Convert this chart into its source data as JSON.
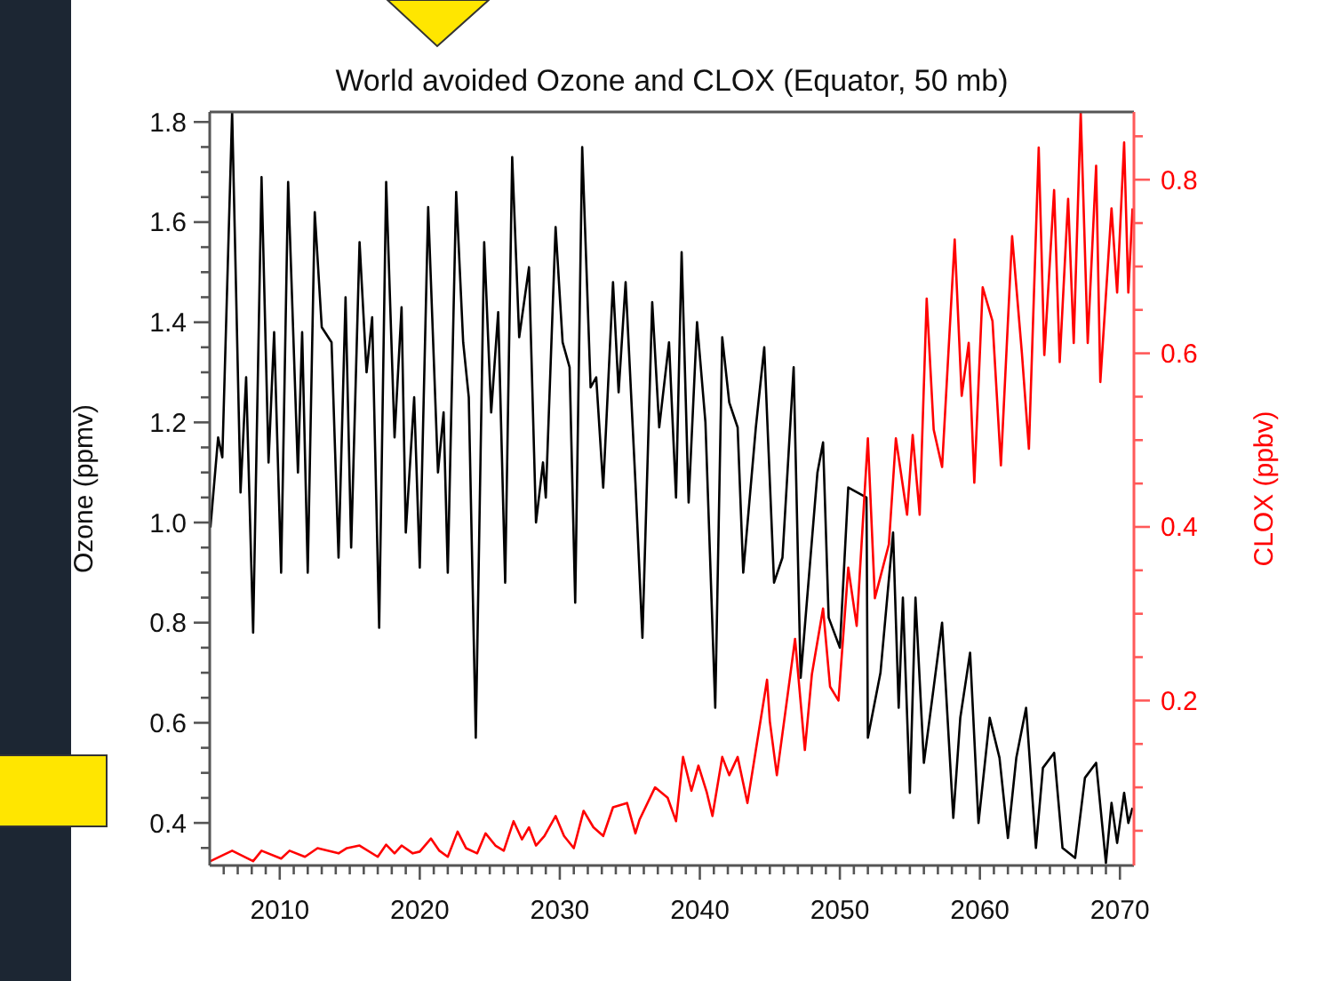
{
  "chart_data": {
    "type": "line",
    "title": "World avoided Ozone and CLOX (Equator, 50 mb)",
    "ylabel": "Ozone (ppmv)",
    "y2label": "CLOX (ppbv)",
    "xlim": [
      2005,
      2071
    ],
    "ylim": [
      0.315,
      1.82
    ],
    "y2lim": [
      0.01,
      0.878
    ],
    "xticks": [
      {
        "value": 2006,
        "label": null
      },
      {
        "value": 2007,
        "label": null
      },
      {
        "value": 2008,
        "label": null
      },
      {
        "value": 2009,
        "label": null
      },
      2010,
      {
        "value": 2011,
        "label": null
      },
      {
        "value": 2012,
        "label": null
      },
      {
        "value": 2013,
        "label": null
      },
      {
        "value": 2014,
        "label": null
      },
      {
        "value": 2015,
        "label": null
      },
      {
        "value": 2016,
        "label": null
      },
      {
        "value": 2017,
        "label": null
      },
      {
        "value": 2018,
        "label": null
      },
      {
        "value": 2019,
        "label": null
      },
      2020,
      {
        "value": 2021,
        "label": null
      },
      {
        "value": 2022,
        "label": null
      },
      {
        "value": 2023,
        "label": null
      },
      {
        "value": 2024,
        "label": null
      },
      {
        "value": 2025,
        "label": null
      },
      {
        "value": 2026,
        "label": null
      },
      {
        "value": 2027,
        "label": null
      },
      {
        "value": 2028,
        "label": null
      },
      {
        "value": 2029,
        "label": null
      },
      2030,
      {
        "value": 2031,
        "label": null
      },
      {
        "value": 2032,
        "label": null
      },
      {
        "value": 2033,
        "label": null
      },
      {
        "value": 2034,
        "label": null
      },
      {
        "value": 2035,
        "label": null
      },
      {
        "value": 2036,
        "label": null
      },
      {
        "value": 2037,
        "label": null
      },
      {
        "value": 2038,
        "label": null
      },
      {
        "value": 2039,
        "label": null
      },
      2040,
      {
        "value": 2041,
        "label": null
      },
      {
        "value": 2042,
        "label": null
      },
      {
        "value": 2043,
        "label": null
      },
      {
        "value": 2044,
        "label": null
      },
      {
        "value": 2045,
        "label": null
      },
      {
        "value": 2046,
        "label": null
      },
      {
        "value": 2047,
        "label": null
      },
      {
        "value": 2048,
        "label": null
      },
      {
        "value": 2049,
        "label": null
      },
      2050,
      {
        "value": 2051,
        "label": null
      },
      {
        "value": 2052,
        "label": null
      },
      {
        "value": 2053,
        "label": null
      },
      {
        "value": 2054,
        "label": null
      },
      {
        "value": 2055,
        "label": null
      },
      {
        "value": 2056,
        "label": null
      },
      {
        "value": 2057,
        "label": null
      },
      {
        "value": 2058,
        "label": null
      },
      {
        "value": 2059,
        "label": null
      },
      2060,
      {
        "value": 2061,
        "label": null
      },
      {
        "value": 2062,
        "label": null
      },
      {
        "value": 2063,
        "label": null
      },
      {
        "value": 2064,
        "label": null
      },
      {
        "value": 2065,
        "label": null
      },
      {
        "value": 2066,
        "label": null
      },
      {
        "value": 2067,
        "label": null
      },
      {
        "value": 2068,
        "label": null
      },
      {
        "value": 2069,
        "label": null
      },
      2070
    ],
    "yticks": [
      {
        "value": 0.35,
        "label": null
      },
      {
        "value": 0.4,
        "label": "0.4"
      },
      {
        "value": 0.45,
        "label": null
      },
      {
        "value": 0.5,
        "label": null
      },
      {
        "value": 0.55,
        "label": null
      },
      {
        "value": 0.6,
        "label": "0.6"
      },
      {
        "value": 0.65,
        "label": null
      },
      {
        "value": 0.7,
        "label": null
      },
      {
        "value": 0.75,
        "label": null
      },
      {
        "value": 0.8,
        "label": "0.8"
      },
      {
        "value": 0.85,
        "label": null
      },
      {
        "value": 0.9,
        "label": null
      },
      {
        "value": 0.95,
        "label": null
      },
      {
        "value": 1.0,
        "label": "1.0"
      },
      {
        "value": 1.05,
        "label": null
      },
      {
        "value": 1.1,
        "label": null
      },
      {
        "value": 1.15,
        "label": null
      },
      {
        "value": 1.2,
        "label": "1.2"
      },
      {
        "value": 1.25,
        "label": null
      },
      {
        "value": 1.3,
        "label": null
      },
      {
        "value": 1.35,
        "label": null
      },
      {
        "value": 1.4,
        "label": "1.4"
      },
      {
        "value": 1.45,
        "label": null
      },
      {
        "value": 1.5,
        "label": null
      },
      {
        "value": 1.55,
        "label": null
      },
      {
        "value": 1.6,
        "label": "1.6"
      },
      {
        "value": 1.65,
        "label": null
      },
      {
        "value": 1.7,
        "label": null
      },
      {
        "value": 1.75,
        "label": null
      },
      {
        "value": 1.8,
        "label": "1.8"
      }
    ],
    "y2ticks": [
      {
        "value": 0.05,
        "label": null
      },
      {
        "value": 0.1,
        "label": null
      },
      {
        "value": 0.15,
        "label": null
      },
      {
        "value": 0.2,
        "label": "0.2"
      },
      {
        "value": 0.25,
        "label": null
      },
      {
        "value": 0.3,
        "label": null
      },
      {
        "value": 0.35,
        "label": null
      },
      {
        "value": 0.4,
        "label": "0.4"
      },
      {
        "value": 0.45,
        "label": null
      },
      {
        "value": 0.5,
        "label": null
      },
      {
        "value": 0.55,
        "label": null
      },
      {
        "value": 0.6,
        "label": "0.6"
      },
      {
        "value": 0.65,
        "label": null
      },
      {
        "value": 0.7,
        "label": null
      },
      {
        "value": 0.75,
        "label": null
      },
      {
        "value": 0.8,
        "label": "0.8"
      },
      {
        "value": 0.85,
        "label": null
      }
    ],
    "series": [
      {
        "color": "#000000",
        "x": [
          2005.05,
          2005.6,
          2005.9,
          2006.6,
          2007.2,
          2007.6,
          2008.1,
          2008.7,
          2009.2,
          2009.6,
          2010.1,
          2010.6,
          2011.3,
          2011.6,
          2012.0,
          2012.5,
          2013.0,
          2013.7,
          2014.2,
          2014.7,
          2015.1,
          2015.7,
          2016.2,
          2016.6,
          2017.1,
          2017.6,
          2018.2,
          2018.7,
          2019.0,
          2019.6,
          2020.0,
          2020.6,
          2021.3,
          2021.7,
          2022.0,
          2022.6,
          2023.1,
          2023.5,
          2024.0,
          2024.6,
          2025.1,
          2025.6,
          2026.1,
          2026.6,
          2027.1,
          2027.8,
          2028.3,
          2028.8,
          2029.0,
          2029.7,
          2030.2,
          2030.7,
          2031.1,
          2031.6,
          2032.2,
          2032.6,
          2033.1,
          2033.8,
          2034.2,
          2034.7,
          2035.4,
          2035.9,
          2036.6,
          2037.1,
          2037.8,
          2038.3,
          2038.7,
          2039.2,
          2039.8,
          2040.4,
          2041.1,
          2041.6,
          2042.1,
          2042.7,
          2043.1,
          2044.0,
          2044.6,
          2045.3,
          2045.9,
          2046.7,
          2047.2,
          2048.4,
          2048.8,
          2049.2,
          2050.0,
          2050.6,
          2051.9,
          2052.0,
          2052.9,
          2053.8,
          2054.2,
          2054.5,
          2055.0,
          2055.4,
          2056.0,
          2057.3,
          2058.1,
          2058.6,
          2059.3,
          2059.9,
          2060.7,
          2061.4,
          2062.0,
          2062.6,
          2063.3,
          2064.0,
          2064.5,
          2065.3,
          2065.9,
          2066.8,
          2067.5,
          2068.3,
          2069.0,
          2069.4,
          2069.8,
          2070.3,
          2070.6,
          2070.9
        ],
        "values": [
          0.99,
          1.17,
          1.13,
          1.82,
          1.06,
          1.29,
          0.78,
          1.69,
          1.12,
          1.38,
          0.9,
          1.68,
          1.1,
          1.38,
          0.9,
          1.62,
          1.39,
          1.36,
          0.93,
          1.45,
          0.95,
          1.56,
          1.3,
          1.41,
          0.79,
          1.68,
          1.17,
          1.43,
          0.98,
          1.25,
          0.91,
          1.63,
          1.1,
          1.22,
          0.9,
          1.66,
          1.36,
          1.25,
          0.57,
          1.56,
          1.22,
          1.42,
          0.88,
          1.73,
          1.37,
          1.51,
          1.0,
          1.12,
          1.05,
          1.59,
          1.36,
          1.31,
          0.84,
          1.75,
          1.27,
          1.29,
          1.07,
          1.48,
          1.26,
          1.48,
          1.08,
          0.77,
          1.44,
          1.19,
          1.36,
          1.05,
          1.54,
          1.04,
          1.4,
          1.2,
          0.63,
          1.37,
          1.24,
          1.19,
          0.9,
          1.19,
          1.35,
          0.88,
          0.93,
          1.31,
          0.69,
          1.1,
          1.16,
          0.81,
          0.75,
          1.07,
          1.05,
          0.57,
          0.7,
          0.98,
          0.63,
          0.85,
          0.46,
          0.85,
          0.52,
          0.8,
          0.41,
          0.61,
          0.74,
          0.4,
          0.61,
          0.53,
          0.37,
          0.53,
          0.63,
          0.35,
          0.51,
          0.54,
          0.35,
          0.33,
          0.49,
          0.52,
          0.32,
          0.44,
          0.36,
          0.46,
          0.4,
          0.43
        ]
      },
      {
        "color": "#ff0000",
        "axis": "y2",
        "x": [
          2005.05,
          2006.6,
          2008.1,
          2008.7,
          2010.1,
          2010.7,
          2011.8,
          2012.7,
          2014.2,
          2014.8,
          2015.7,
          2017.0,
          2017.6,
          2018.2,
          2018.7,
          2019.5,
          2020.0,
          2020.8,
          2021.4,
          2022.0,
          2022.7,
          2023.3,
          2024.1,
          2024.7,
          2025.4,
          2026.0,
          2026.7,
          2027.3,
          2027.8,
          2028.3,
          2028.9,
          2029.7,
          2030.3,
          2031.0,
          2031.7,
          2032.4,
          2033.1,
          2033.8,
          2034.8,
          2035.4,
          2035.7,
          2036.8,
          2037.7,
          2038.3,
          2038.8,
          2039.4,
          2039.9,
          2040.5,
          2040.9,
          2041.6,
          2042.1,
          2042.7,
          2043.4,
          2044.0,
          2044.8,
          2045.0,
          2045.5,
          2046.3,
          2046.8,
          2047.5,
          2048.0,
          2048.8,
          2049.3,
          2049.9,
          2050.6,
          2051.2,
          2052.0,
          2052.5,
          2053.5,
          2054.0,
          2054.8,
          2055.2,
          2055.7,
          2056.2,
          2056.7,
          2057.3,
          2058.2,
          2058.7,
          2059.2,
          2059.6,
          2060.2,
          2060.9,
          2061.5,
          2062.3,
          2063.0,
          2063.5,
          2064.2,
          2064.6,
          2065.3,
          2065.7,
          2066.3,
          2066.7,
          2067.2,
          2067.7,
          2068.3,
          2068.6,
          2069.4,
          2069.8,
          2070.3,
          2070.6,
          2070.9
        ],
        "values": [
          0.015,
          0.027,
          0.015,
          0.027,
          0.018,
          0.027,
          0.02,
          0.03,
          0.024,
          0.03,
          0.033,
          0.02,
          0.034,
          0.024,
          0.033,
          0.024,
          0.026,
          0.041,
          0.027,
          0.02,
          0.049,
          0.03,
          0.024,
          0.047,
          0.033,
          0.027,
          0.061,
          0.04,
          0.054,
          0.033,
          0.044,
          0.067,
          0.044,
          0.03,
          0.073,
          0.054,
          0.044,
          0.077,
          0.082,
          0.047,
          0.063,
          0.1,
          0.088,
          0.061,
          0.135,
          0.096,
          0.125,
          0.094,
          0.067,
          0.135,
          0.114,
          0.135,
          0.082,
          0.143,
          0.224,
          0.176,
          0.114,
          0.21,
          0.271,
          0.143,
          0.23,
          0.306,
          0.216,
          0.2,
          0.353,
          0.286,
          0.502,
          0.318,
          0.38,
          0.502,
          0.414,
          0.506,
          0.414,
          0.663,
          0.512,
          0.469,
          0.731,
          0.551,
          0.612,
          0.451,
          0.676,
          0.637,
          0.471,
          0.735,
          0.6,
          0.49,
          0.837,
          0.598,
          0.788,
          0.59,
          0.778,
          0.612,
          0.878,
          0.612,
          0.816,
          0.567,
          0.767,
          0.67,
          0.843,
          0.67,
          0.767
        ]
      }
    ]
  }
}
